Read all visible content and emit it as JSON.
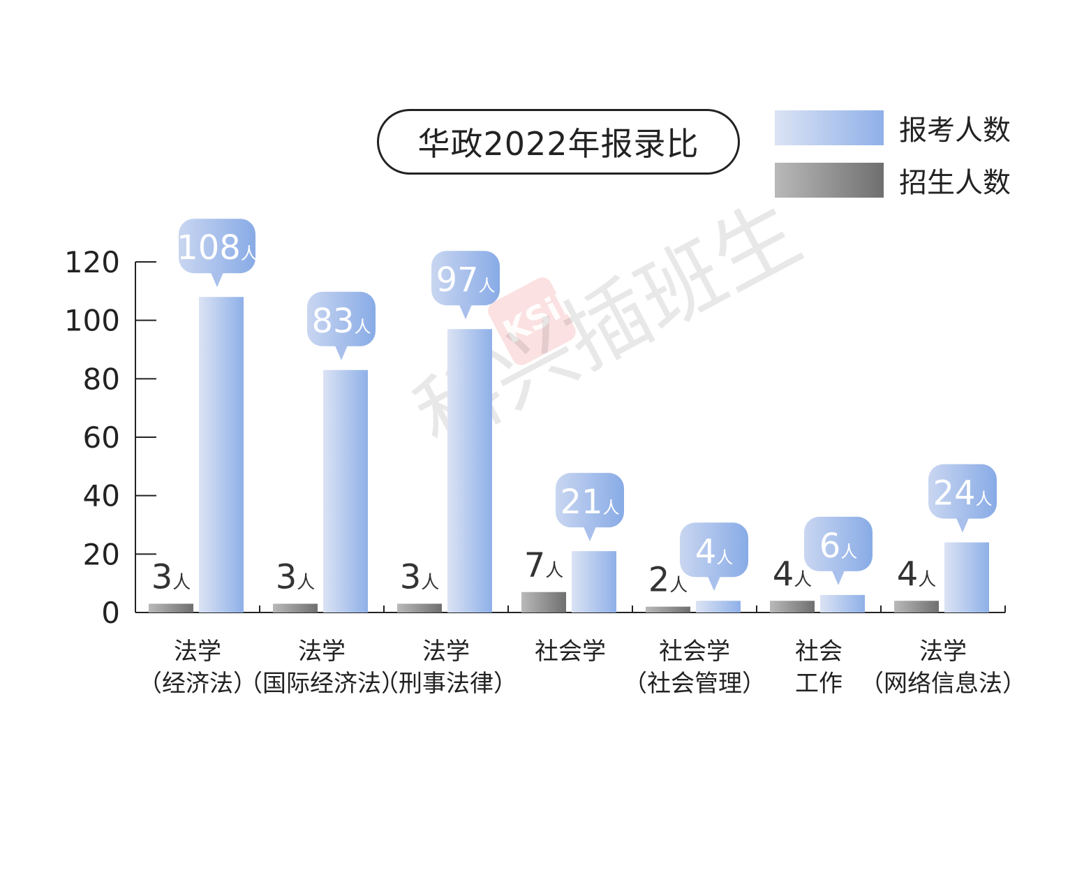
{
  "title": "华政2022年报录比",
  "legend": [
    {
      "label": "报考人数",
      "series": "apply"
    },
    {
      "label": "招生人数",
      "series": "admit"
    }
  ],
  "watermark": {
    "text": "科兴插班生",
    "logo_text": "KSiNG"
  },
  "colors": {
    "apply_light": "#dbe3f4",
    "apply_dark": "#8fb0e8",
    "admit_light": "#b9b9b9",
    "admit_dark": "#6f6f6f",
    "axis": "#222222",
    "label_dark": "#333333"
  },
  "chart_data": {
    "type": "bar",
    "title": "华政2022年报录比",
    "unit": "人",
    "categories": [
      [
        "法学",
        "（经济法）"
      ],
      [
        "法学",
        "（国际经济法）"
      ],
      [
        "法学",
        "（刑事法律）"
      ],
      [
        "社会学"
      ],
      [
        "社会学",
        "（社会管理）"
      ],
      [
        "社会",
        "工作"
      ],
      [
        "法学",
        "（网络信息法）"
      ]
    ],
    "series": [
      {
        "name": "招生人数",
        "values": [
          3,
          3,
          3,
          7,
          2,
          4,
          4
        ]
      },
      {
        "name": "报考人数",
        "values": [
          108,
          83,
          97,
          21,
          4,
          6,
          24
        ]
      }
    ],
    "ylim": [
      0,
      120
    ],
    "yticks": [
      0,
      20,
      40,
      60,
      80,
      100,
      120
    ],
    "grid": false,
    "legend_position": "top-right"
  }
}
